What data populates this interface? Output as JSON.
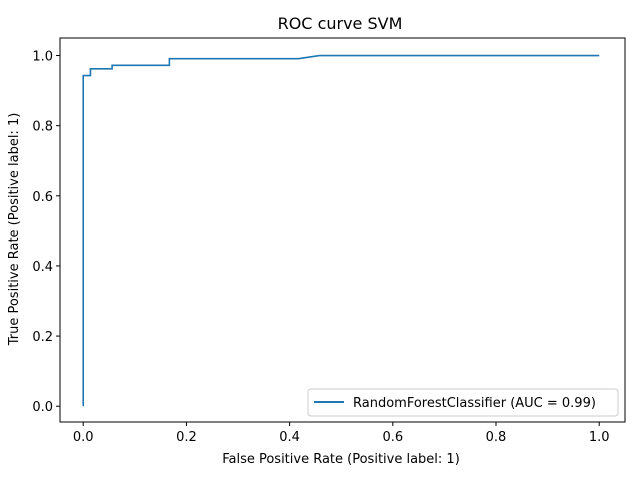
{
  "chart_data": {
    "type": "line",
    "title": "ROC curve SVM",
    "xlabel": "False Positive Rate (Positive label: 1)",
    "ylabel": "True Positive Rate (Positive label: 1)",
    "xlim": [
      -0.045,
      1.05
    ],
    "ylim": [
      -0.045,
      1.05
    ],
    "xticks": [
      "0.0",
      "0.2",
      "0.4",
      "0.6",
      "0.8",
      "1.0"
    ],
    "yticks": [
      "0.0",
      "0.2",
      "0.4",
      "0.6",
      "0.8",
      "1.0"
    ],
    "grid": false,
    "legend_position": "lower-right",
    "series": [
      {
        "name": "RandomForestClassifier (AUC = 0.99)",
        "color": "#1f77b4",
        "x": [
          0.0,
          0.0,
          0.0,
          0.014,
          0.014,
          0.056,
          0.056,
          0.167,
          0.167,
          0.417,
          0.458,
          1.0
        ],
        "y": [
          0.0,
          0.943,
          0.943,
          0.943,
          0.962,
          0.962,
          0.972,
          0.972,
          0.991,
          0.991,
          1.0,
          1.0
        ]
      }
    ]
  }
}
